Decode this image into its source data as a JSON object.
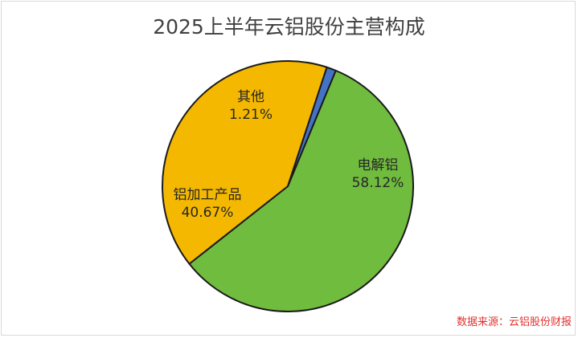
{
  "title": "2025上半年云铝股份主营构成",
  "source": "数据来源：云铝股份财报",
  "chart_data": {
    "type": "pie",
    "title": "2025上半年云铝股份主营构成",
    "start_angle_deg": 22.5,
    "slices": [
      {
        "name": "电解铝",
        "value": 58.12,
        "label": "58.12%",
        "color": "#70bc3e"
      },
      {
        "name": "铝加工产品",
        "value": 40.67,
        "label": "40.67%",
        "color": "#f5b800"
      },
      {
        "name": "其他",
        "value": 1.21,
        "label": "1.21%",
        "color": "#4472c4"
      }
    ]
  }
}
